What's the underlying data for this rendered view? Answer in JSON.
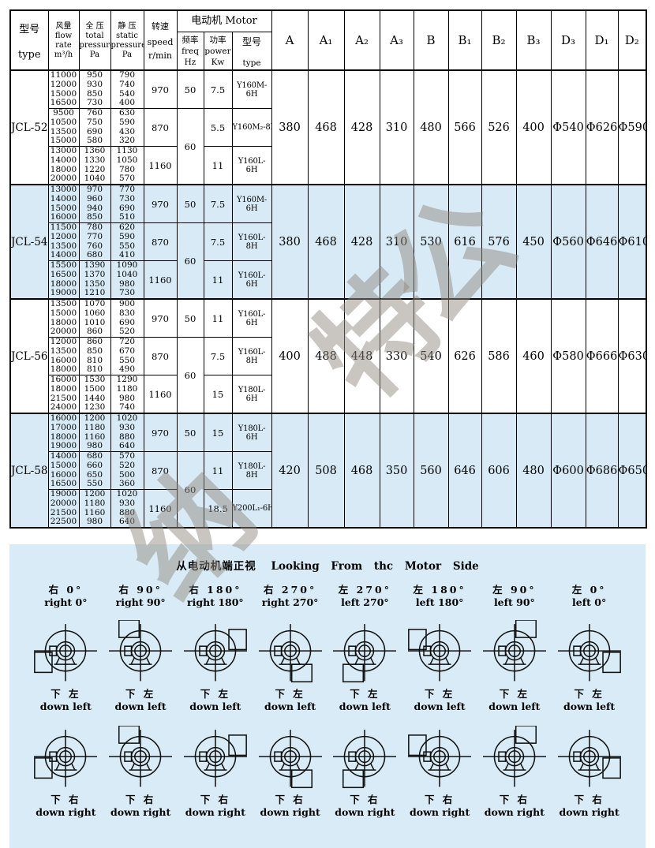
{
  "table": {
    "header": {
      "type_zh": "型号",
      "type_en": "type",
      "flow_zh": "风量",
      "flow_lines": [
        "flow",
        "rate",
        "m³/h"
      ],
      "total_zh": "全 压",
      "total_lines": [
        "total",
        "pressure",
        "Pa"
      ],
      "static_zh": "静 压",
      "static_lines": [
        "static",
        "pressure",
        "Pa"
      ],
      "speed_zh": "转速",
      "speed_lines": [
        "speed",
        "r/min"
      ],
      "motor_zh": "电动机 Motor",
      "freq": [
        "频率",
        "freq",
        "Hz"
      ],
      "power": [
        "功率",
        "power",
        "Kw"
      ],
      "motor_type": [
        "型号",
        "type"
      ],
      "dims": [
        "A",
        "A₁",
        "A₂",
        "A₃",
        "B",
        "B₁",
        "B₂",
        "B₃",
        "D₃",
        "D₁",
        "D₂"
      ]
    },
    "models": [
      {
        "name": "JCL-52",
        "shaded": false,
        "groups": [
          {
            "flow": [
              "11000",
              "12000",
              "15000",
              "16500"
            ],
            "total": [
              "950",
              "930",
              "850",
              "730"
            ],
            "static": [
              "790",
              "740",
              "540",
              "400"
            ],
            "speed": "970",
            "freq": "50",
            "power": "7.5",
            "motor": "Y160M-6H"
          },
          {
            "flow": [
              "9500",
              "10500",
              "13500",
              "15000"
            ],
            "total": [
              "760",
              "750",
              "690",
              "580"
            ],
            "static": [
              "630",
              "590",
              "430",
              "320"
            ],
            "speed": "870",
            "freq": "60",
            "power": "5.5",
            "motor": "Y160M₂-8H"
          },
          {
            "flow": [
              "13000",
              "14000",
              "18000",
              "20000"
            ],
            "total": [
              "1360",
              "1330",
              "1220",
              "1040"
            ],
            "static": [
              "1130",
              "1050",
              "780",
              "570"
            ],
            "speed": "1160",
            "power": "11",
            "motor": "Y160L-6H"
          }
        ],
        "dims": [
          "380",
          "468",
          "428",
          "310",
          "480",
          "566",
          "526",
          "400",
          "Φ540",
          "Φ626",
          "Φ590"
        ]
      },
      {
        "name": "JCL-54",
        "shaded": true,
        "groups": [
          {
            "flow": [
              "13000",
              "14000",
              "15000",
              "16000"
            ],
            "total": [
              "970",
              "960",
              "940",
              "850"
            ],
            "static": [
              "770",
              "730",
              "690",
              "510"
            ],
            "speed": "970",
            "freq": "50",
            "power": "7.5",
            "motor": "Y160M-6H"
          },
          {
            "flow": [
              "11500",
              "12000",
              "13500",
              "14000"
            ],
            "total": [
              "780",
              "770",
              "760",
              "680"
            ],
            "static": [
              "620",
              "590",
              "550",
              "410"
            ],
            "speed": "870",
            "freq": "60",
            "power": "7.5",
            "motor": "Y160L-8H"
          },
          {
            "flow": [
              "15500",
              "16500",
              "18000",
              "19000"
            ],
            "total": [
              "1390",
              "1370",
              "1350",
              "1210"
            ],
            "static": [
              "1090",
              "1040",
              "980",
              "730"
            ],
            "speed": "1160",
            "power": "11",
            "motor": "Y160L-6H"
          }
        ],
        "dims": [
          "380",
          "468",
          "428",
          "310",
          "530",
          "616",
          "576",
          "450",
          "Φ560",
          "Φ646",
          "Φ610"
        ]
      },
      {
        "name": "JCL-56",
        "shaded": false,
        "groups": [
          {
            "flow": [
              "13500",
              "15000",
              "18000",
              "20000"
            ],
            "total": [
              "1070",
              "1060",
              "1010",
              "860"
            ],
            "static": [
              "900",
              "830",
              "690",
              "520"
            ],
            "speed": "970",
            "freq": "50",
            "power": "11",
            "motor": "Y160L-6H"
          },
          {
            "flow": [
              "12000",
              "13500",
              "16000",
              "18000"
            ],
            "total": [
              "860",
              "850",
              "810",
              "810"
            ],
            "static": [
              "720",
              "670",
              "550",
              "490"
            ],
            "speed": "870",
            "freq": "60",
            "power": "7.5",
            "motor": "Y160L-8H"
          },
          {
            "flow": [
              "16000",
              "18000",
              "21500",
              "24000"
            ],
            "total": [
              "1530",
              "1500",
              "1440",
              "1230"
            ],
            "static": [
              "1290",
              "1180",
              "980",
              "740"
            ],
            "speed": "1160",
            "power": "15",
            "motor": "Y180L-6H"
          }
        ],
        "dims": [
          "400",
          "488",
          "448",
          "330",
          "540",
          "626",
          "586",
          "460",
          "Φ580",
          "Φ666",
          "Φ630"
        ]
      },
      {
        "name": "JCL-58",
        "shaded": true,
        "groups": [
          {
            "flow": [
              "16000",
              "17000",
              "18000",
              "19000"
            ],
            "total": [
              "1200",
              "1180",
              "1160",
              "980"
            ],
            "static": [
              "1020",
              "930",
              "880",
              "640"
            ],
            "speed": "970",
            "freq": "50",
            "power": "15",
            "motor": "Y180L-6H"
          },
          {
            "flow": [
              "14000",
              "15000",
              "16000",
              "16500"
            ],
            "total": [
              "680",
              "660",
              "650",
              "550"
            ],
            "static": [
              "570",
              "520",
              "500",
              "360"
            ],
            "speed": "870",
            "freq": "60",
            "power": "11",
            "motor": "Y180L-8H"
          },
          {
            "flow": [
              "19000",
              "20000",
              "21500",
              "22500"
            ],
            "total": [
              "1200",
              "1180",
              "1160",
              "980"
            ],
            "static": [
              "1020",
              "930",
              "880",
              "640"
            ],
            "speed": "1160",
            "power": "18.5",
            "motor": "Y200L₁-6H"
          }
        ],
        "dims": [
          "420",
          "508",
          "468",
          "350",
          "560",
          "646",
          "606",
          "480",
          "Φ600",
          "Φ686",
          "Φ650"
        ]
      }
    ]
  },
  "watermark": {
    "text": "纳特公"
  },
  "orientation": {
    "title_zh": "从电动机端正视",
    "title_en": "Looking From thc Motor Side",
    "columns": [
      {
        "zh": "右  0°",
        "en": "right 0°",
        "side": "right",
        "angle": 0
      },
      {
        "zh": "右  90°",
        "en": "right 90°",
        "side": "right",
        "angle": 90
      },
      {
        "zh": "右  180°",
        "en": "right 180°",
        "side": "right",
        "angle": 180
      },
      {
        "zh": "右  270°",
        "en": "right 270°",
        "side": "right",
        "angle": 270
      },
      {
        "zh": "左  270°",
        "en": "left 270°",
        "side": "left",
        "angle": 270
      },
      {
        "zh": "左  180°",
        "en": "left 180°",
        "side": "left",
        "angle": 180
      },
      {
        "zh": "左  90°",
        "en": "left 90°",
        "side": "left",
        "angle": 90
      },
      {
        "zh": "左  0°",
        "en": "left 0°",
        "side": "left",
        "angle": 0
      }
    ],
    "rows": [
      {
        "zh": "下 左",
        "en": "down left"
      },
      {
        "zh": "下 右",
        "en": "down right"
      }
    ]
  }
}
